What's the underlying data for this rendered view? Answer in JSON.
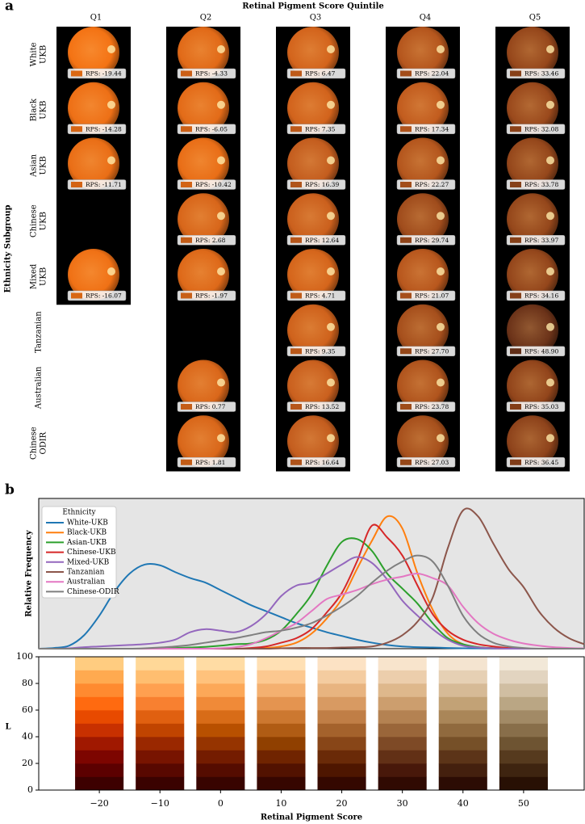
{
  "chart_data": [
    {
      "type": "image-grid",
      "panel": "a",
      "title": "Retinal Pigment Score Quintile",
      "y_label": "Ethnicity Subgroup",
      "columns": [
        "Q1",
        "Q2",
        "Q3",
        "Q4",
        "Q5"
      ],
      "rows": [
        [
          "White",
          "UKB"
        ],
        [
          "Black",
          "UKB"
        ],
        [
          "Asian",
          "UKB"
        ],
        [
          "Chinese",
          "UKB"
        ],
        [
          "Mixed",
          "UKB"
        ],
        [
          "Tanzanian"
        ],
        [
          "Australian"
        ],
        [
          "Chinese",
          "ODIR"
        ]
      ],
      "values": [
        [
          -19.44,
          -4.33,
          6.47,
          22.04,
          33.46
        ],
        [
          -14.28,
          -6.05,
          7.35,
          17.34,
          32.08
        ],
        [
          -11.71,
          -10.42,
          16.39,
          22.27,
          33.78
        ],
        [
          null,
          2.68,
          12.64,
          29.74,
          33.97
        ],
        [
          -16.07,
          -1.97,
          4.71,
          21.07,
          34.16
        ],
        [
          null,
          null,
          9.35,
          27.7,
          48.9
        ],
        [
          null,
          0.77,
          13.52,
          23.78,
          35.03
        ],
        [
          null,
          1.81,
          16.64,
          27.03,
          36.45
        ]
      ],
      "value_labels": [
        [
          "RPS: -19.44",
          "RPS: -4.33",
          "RPS: 6.47",
          "RPS: 22.04",
          "RPS: 33.46"
        ],
        [
          "RPS: -14.28",
          "RPS: -6.05",
          "RPS: 7.35",
          "RPS: 17.34",
          "RPS: 32.08"
        ],
        [
          "RPS: -11.71",
          "RPS: -10.42",
          "RPS: 16.39",
          "RPS: 22.27",
          "RPS: 33.78"
        ],
        [
          null,
          "RPS: 2.68",
          "RPS: 12.64",
          "RPS: 29.74",
          "RPS: 33.97"
        ],
        [
          "RPS: -16.07",
          "RPS: -1.97",
          "RPS: 4.71",
          "RPS: 21.07",
          "RPS: 34.16"
        ],
        [
          null,
          null,
          "RPS: 9.35",
          "RPS: 27.70",
          "RPS: 48.90"
        ],
        [
          null,
          "RPS: 0.77",
          "RPS: 13.52",
          "RPS: 23.78",
          "RPS: 35.03"
        ],
        [
          null,
          "RPS: 1.81",
          "RPS: 16.64",
          "RPS: 27.03",
          "RPS: 36.45"
        ]
      ]
    },
    {
      "type": "line",
      "panel": "b",
      "y_label": "Relative Frequency",
      "legend_title": "Ethnicity",
      "legend": "upper left",
      "background": "#e5e5e5",
      "xlim": [
        -30,
        60
      ],
      "ylim": [
        0,
        1
      ],
      "x": [
        -30,
        -27.5,
        -25,
        -22.5,
        -20,
        -17.5,
        -15,
        -12.5,
        -10,
        -7.5,
        -5,
        -2.5,
        0,
        2.5,
        5,
        7.5,
        10,
        12.5,
        15,
        17.5,
        20,
        22.5,
        25,
        27.5,
        30,
        32.5,
        35,
        37.5,
        40,
        42.5,
        45,
        47.5,
        50,
        52.5,
        55,
        57.5,
        60
      ],
      "series": [
        {
          "name": "White-UKB",
          "color": "#1f77b4",
          "values": [
            0,
            0.005,
            0.02,
            0.09,
            0.22,
            0.38,
            0.5,
            0.56,
            0.555,
            0.51,
            0.47,
            0.44,
            0.39,
            0.34,
            0.29,
            0.25,
            0.21,
            0.17,
            0.14,
            0.11,
            0.085,
            0.06,
            0.04,
            0.025,
            0.015,
            0.01,
            0.008,
            0.005,
            0.003,
            0.002,
            0.001,
            0,
            0,
            0,
            0,
            0,
            0
          ]
        },
        {
          "name": "Black-UKB",
          "color": "#ff7f0e",
          "values": [
            0,
            0,
            0,
            0,
            0,
            0,
            0,
            0,
            0,
            0,
            0,
            0,
            0,
            0,
            0,
            0.005,
            0.015,
            0.04,
            0.1,
            0.2,
            0.33,
            0.53,
            0.72,
            0.88,
            0.8,
            0.5,
            0.26,
            0.1,
            0.03,
            0.01,
            0.003,
            0,
            0,
            0,
            0,
            0,
            0
          ]
        },
        {
          "name": "Asian-UKB",
          "color": "#2ca02c",
          "values": [
            0,
            0,
            0,
            0,
            0,
            0,
            0,
            0,
            0.003,
            0.005,
            0.008,
            0.012,
            0.02,
            0.03,
            0.035,
            0.06,
            0.12,
            0.23,
            0.36,
            0.55,
            0.71,
            0.73,
            0.65,
            0.5,
            0.4,
            0.3,
            0.17,
            0.07,
            0.03,
            0.01,
            0.004,
            0,
            0,
            0,
            0,
            0,
            0
          ]
        },
        {
          "name": "Chinese-UKB",
          "color": "#d62728",
          "values": [
            0,
            0,
            0,
            0,
            0,
            0,
            0,
            0,
            0,
            0,
            0,
            0,
            0,
            0,
            0.005,
            0.015,
            0.04,
            0.07,
            0.13,
            0.24,
            0.37,
            0.58,
            0.82,
            0.74,
            0.62,
            0.42,
            0.23,
            0.12,
            0.06,
            0.03,
            0.015,
            0.005,
            0,
            0,
            0,
            0,
            0
          ]
        },
        {
          "name": "Mixed-UKB",
          "color": "#9467bd",
          "values": [
            0,
            0,
            0.003,
            0.01,
            0.015,
            0.02,
            0.025,
            0.03,
            0.04,
            0.06,
            0.11,
            0.13,
            0.12,
            0.11,
            0.15,
            0.23,
            0.35,
            0.42,
            0.44,
            0.5,
            0.56,
            0.61,
            0.57,
            0.46,
            0.32,
            0.22,
            0.13,
            0.06,
            0.02,
            0.008,
            0.003,
            0,
            0,
            0,
            0,
            0,
            0
          ]
        },
        {
          "name": "Tanzanian",
          "color": "#8c564b",
          "values": [
            0,
            0,
            0,
            0,
            0,
            0,
            0,
            0,
            0,
            0,
            0,
            0,
            0,
            0,
            0,
            0,
            0.003,
            0.005,
            0.005,
            0.005,
            0.008,
            0.01,
            0.015,
            0.04,
            0.09,
            0.18,
            0.34,
            0.67,
            0.92,
            0.88,
            0.7,
            0.53,
            0.41,
            0.25,
            0.14,
            0.07,
            0.03
          ]
        },
        {
          "name": "Australian",
          "color": "#e377c2",
          "values": [
            0,
            0,
            0,
            0,
            0,
            0,
            0,
            0,
            0,
            0,
            0,
            0,
            0.003,
            0.01,
            0.03,
            0.07,
            0.12,
            0.17,
            0.25,
            0.33,
            0.36,
            0.39,
            0.43,
            0.46,
            0.48,
            0.5,
            0.47,
            0.42,
            0.28,
            0.17,
            0.1,
            0.06,
            0.035,
            0.02,
            0.01,
            0.005,
            0.002
          ]
        },
        {
          "name": "Chinese-ODIR",
          "color": "#7f7f7f",
          "values": [
            0,
            0,
            0,
            0,
            0,
            0,
            0,
            0.003,
            0.008,
            0.015,
            0.025,
            0.04,
            0.055,
            0.07,
            0.09,
            0.11,
            0.12,
            0.14,
            0.17,
            0.22,
            0.28,
            0.35,
            0.44,
            0.52,
            0.58,
            0.62,
            0.58,
            0.42,
            0.22,
            0.1,
            0.04,
            0.015,
            0.005,
            0,
            0,
            0,
            0
          ]
        }
      ]
    },
    {
      "type": "swatch",
      "x_label": "Retinal Pigment Score",
      "y_label": "L",
      "xlim": [
        -30,
        60
      ],
      "ylim": [
        0,
        100
      ],
      "xticks": [
        {
          "value": -20,
          "label": "−20"
        },
        {
          "value": -10,
          "label": "−10"
        },
        0,
        10,
        20,
        30,
        40,
        50
      ],
      "yticks": [
        0,
        20,
        40,
        60,
        80,
        100
      ],
      "x": [
        -20,
        -10,
        0,
        10,
        20,
        30,
        40,
        50
      ],
      "l_bins": [
        0,
        10,
        20,
        30,
        40,
        50,
        60,
        70,
        80,
        90,
        100
      ],
      "colors": [
        [
          "#3d0000",
          "#5c0000",
          "#7d0500",
          "#a01800",
          "#c83000",
          "#e84a00",
          "#ff6a10",
          "#ff8a30",
          "#ffaa50",
          "#ffcc80"
        ],
        [
          "#3a0200",
          "#580800",
          "#781400",
          "#9a2800",
          "#c04400",
          "#e06010",
          "#f88030",
          "#ffa050",
          "#ffbe70",
          "#ffd898"
        ],
        [
          "#380400",
          "#550c00",
          "#741c00",
          "#963400",
          "#b85000",
          "#d86c18",
          "#f08a38",
          "#fca858",
          "#ffc27c",
          "#ffdca4"
        ],
        [
          "#360600",
          "#521200",
          "#702400",
          "#904000",
          "#b05c14",
          "#cc7830",
          "#e49450",
          "#f4b070",
          "#fcc890",
          "#ffe0b4"
        ],
        [
          "#340800",
          "#4e1600",
          "#6a2a08",
          "#884618",
          "#a4622c",
          "#c07e46",
          "#d89a62",
          "#e8b480",
          "#f4cca0",
          "#fce2c4"
        ],
        [
          "#300a02",
          "#48180a",
          "#623016",
          "#7e4a26",
          "#9a663a",
          "#b48252",
          "#cc9e6e",
          "#deb88c",
          "#ecceac",
          "#f8e4cc"
        ],
        [
          "#2c0c04",
          "#44200e",
          "#5c3418",
          "#765028",
          "#906a3e",
          "#aa8658",
          "#c2a276",
          "#d6ba96",
          "#e6d0b4",
          "#f4e4d0"
        ],
        [
          "#281004",
          "#3e2410",
          "#563a1e",
          "#6e5432",
          "#886e4a",
          "#a28a66",
          "#baa684",
          "#d0bea2",
          "#e2d4c0",
          "#f2e8d8"
        ]
      ]
    }
  ]
}
